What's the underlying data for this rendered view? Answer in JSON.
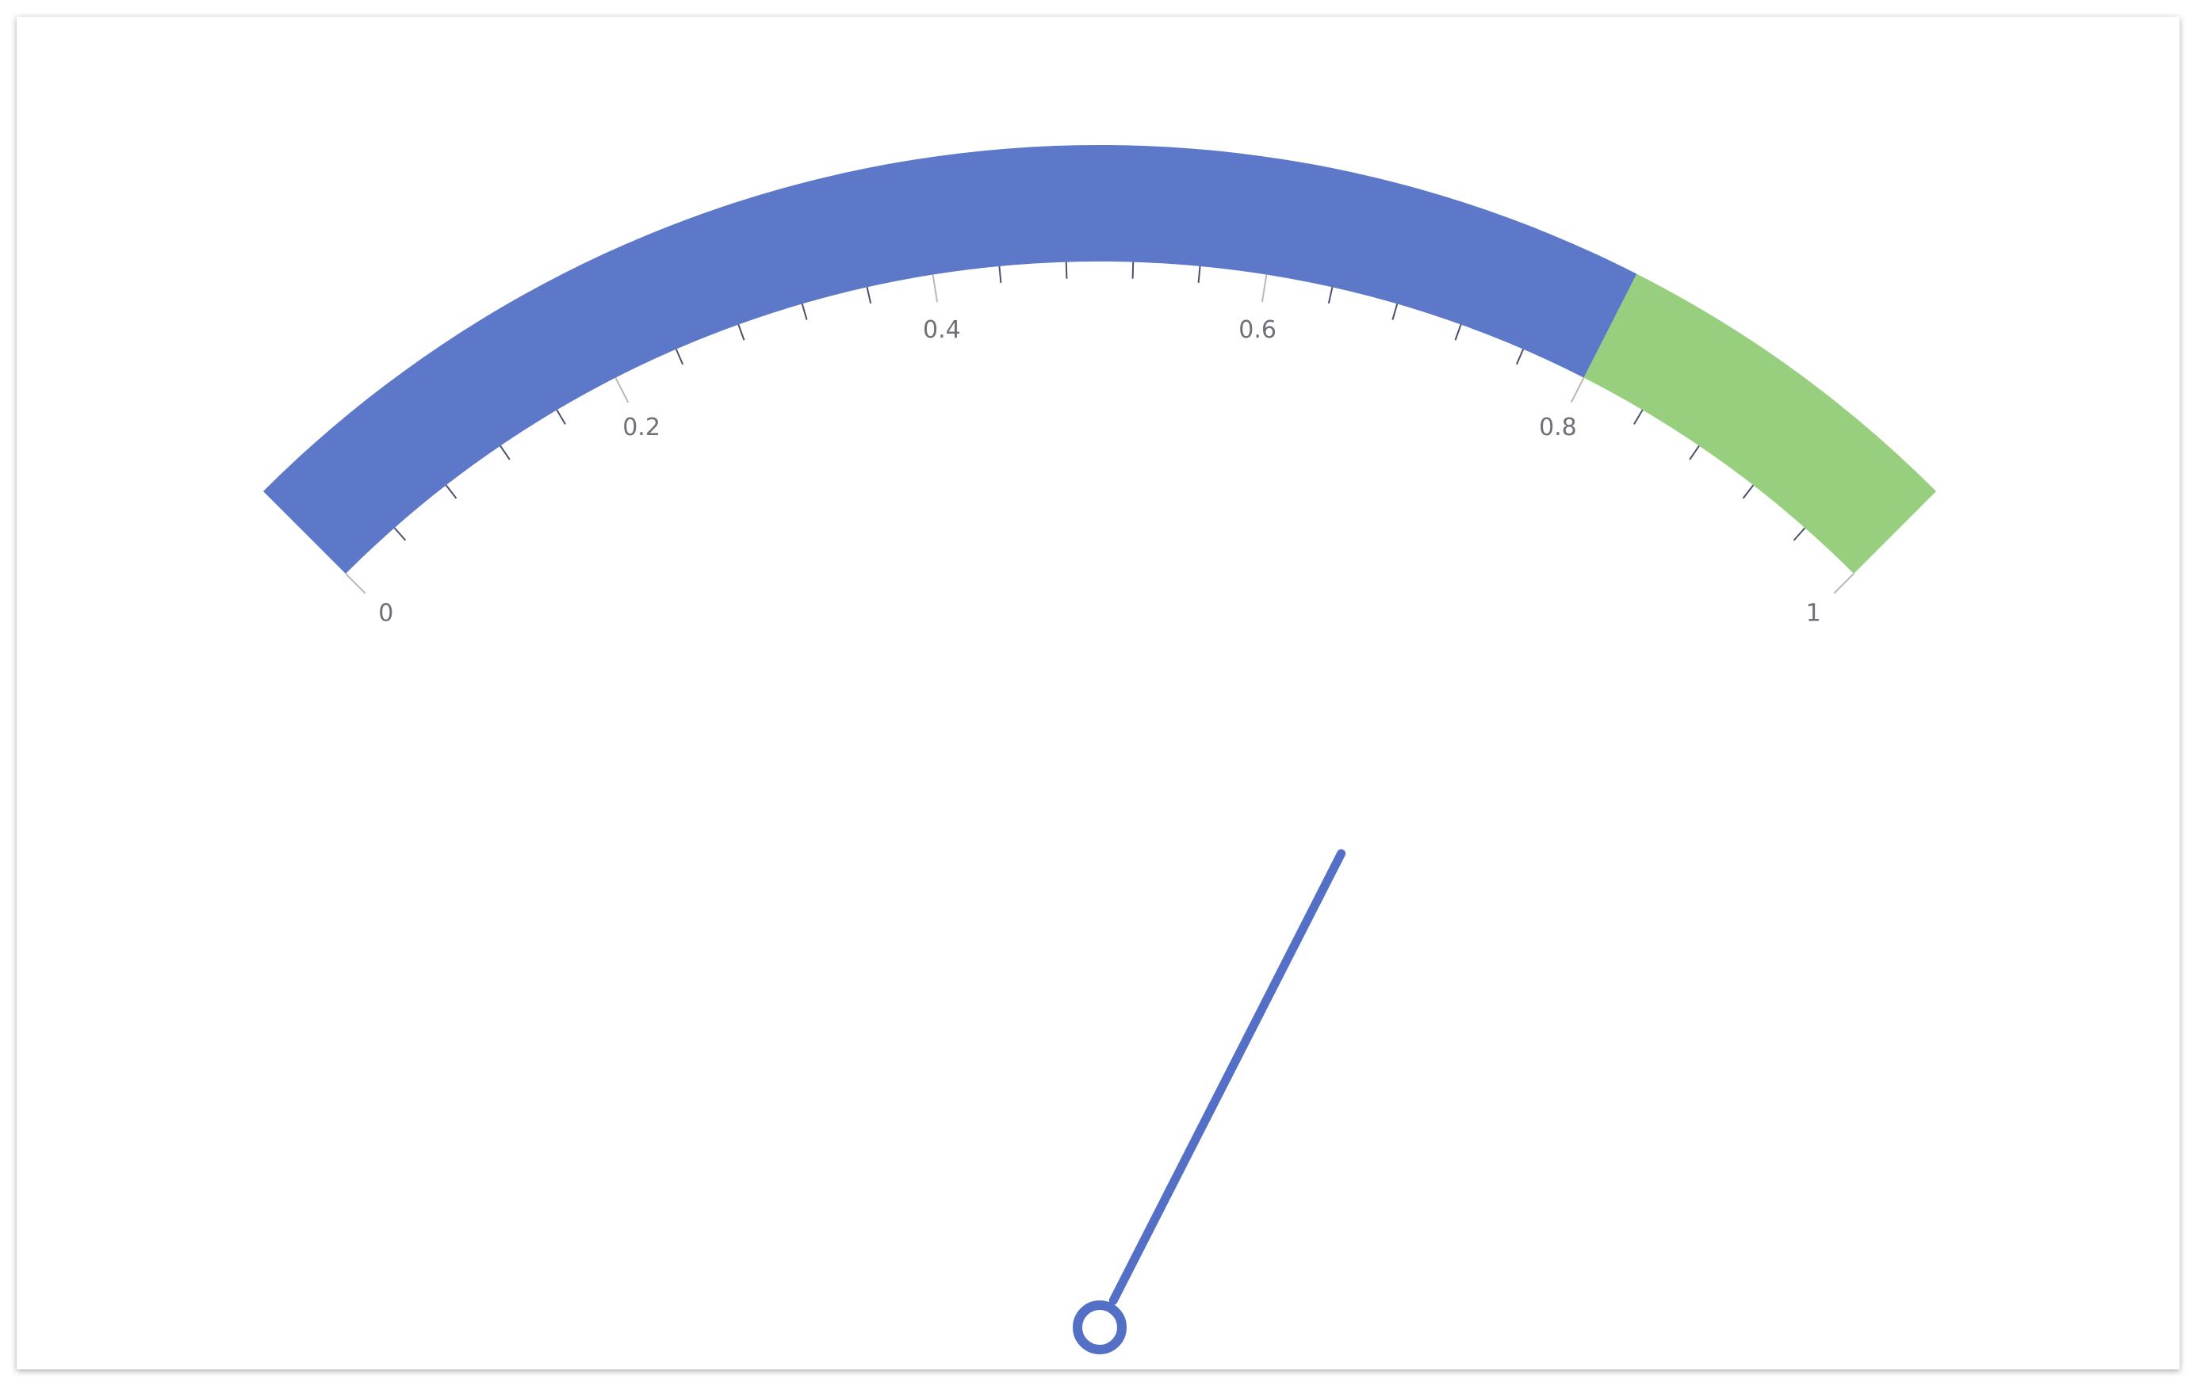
{
  "chart_data": {
    "type": "gauge",
    "value": 0.8,
    "lim": [
      0,
      1
    ],
    "ticks": [
      0,
      0.2,
      0.4,
      0.6,
      0.8,
      1
    ],
    "minor_divisions": 5,
    "bands": [
      {
        "to": 0.8,
        "color": "#5d78c8"
      },
      {
        "to": 1,
        "color": "#98cf7e"
      }
    ],
    "needle_color": "#5470c6"
  }
}
